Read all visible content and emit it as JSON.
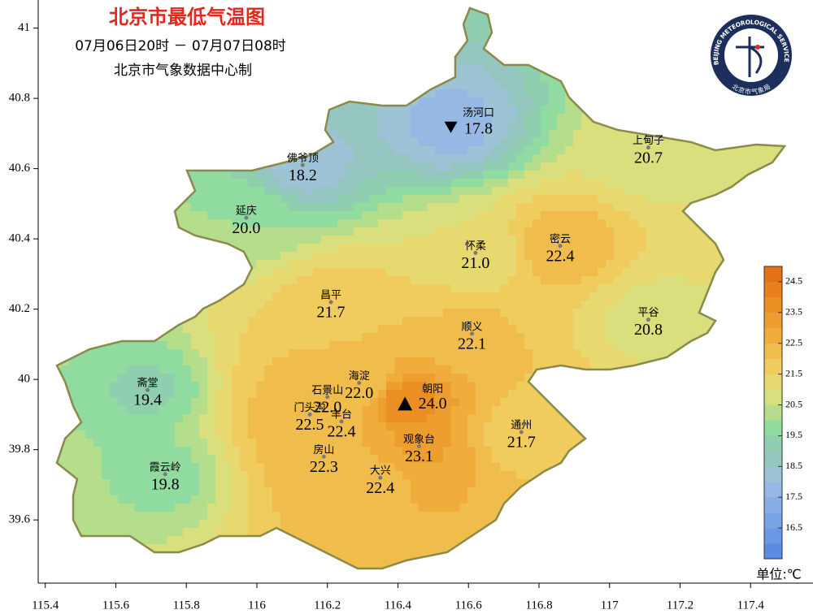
{
  "chart_data": {
    "type": "map",
    "title": "北京市最低气温图",
    "subtitle": "07月06日20时 － 07月07日08时",
    "source": "北京市气象数据中心制",
    "unit": "单位:℃",
    "logo": {
      "text_en": "BEIJING METEOROLOGICAL SERVICE",
      "text_cn": "北京市气象局"
    },
    "xlim": [
      115.38,
      117.57
    ],
    "ylim": [
      39.42,
      41.08
    ],
    "xticks": [
      115.4,
      115.6,
      115.8,
      116,
      116.2,
      116.4,
      116.6,
      116.8,
      117,
      117.2,
      117.4
    ],
    "yticks": [
      39.6,
      39.8,
      40,
      40.2,
      40.4,
      40.6,
      40.8,
      41
    ],
    "stations": {
      "names": [
        "汤河口",
        "上甸子",
        "佛爷顶",
        "延庆",
        "怀柔",
        "密云",
        "昌平",
        "平谷",
        "顺义",
        "斋堂",
        "海淀",
        "朝阳",
        "石景山",
        "门头沟",
        "丰台",
        "通州",
        "观象台",
        "房山",
        "霞云岭",
        "大兴"
      ],
      "values": [
        17.8,
        20.7,
        18.2,
        20,
        21,
        22.4,
        21.7,
        20.8,
        22.1,
        19.4,
        22,
        24,
        22,
        22.5,
        22.4,
        21.7,
        23.1,
        22.3,
        19.8,
        22.4
      ],
      "value_labels": [
        "17.8",
        "20.7",
        "18.2",
        "20.0",
        "21.0",
        "22.4",
        "21.7",
        "20.8",
        "22.1",
        "19.4",
        "22.0",
        "24.0",
        "22.0",
        "22.5",
        "22.4",
        "21.7",
        "23.1",
        "22.3",
        "19.8",
        "22.4"
      ],
      "lon": [
        116.55,
        117.11,
        116.13,
        115.97,
        116.62,
        116.86,
        116.21,
        117.11,
        116.61,
        115.69,
        116.29,
        116.42,
        116.2,
        116.15,
        116.24,
        116.75,
        116.46,
        116.19,
        115.74,
        116.35
      ],
      "lat": [
        40.72,
        40.66,
        40.61,
        40.46,
        40.36,
        40.38,
        40.22,
        40.17,
        40.13,
        39.97,
        39.99,
        39.93,
        39.95,
        39.9,
        39.88,
        39.85,
        39.81,
        39.78,
        39.73,
        39.72
      ]
    },
    "colorbar": {
      "clim": [
        15.5,
        25
      ],
      "ticks": [
        16.5,
        17.5,
        18.5,
        19.5,
        20.5,
        21.5,
        22.5,
        23.5,
        24.5
      ],
      "colors": [
        "#5a8de2",
        "#6a98e4",
        "#7aa3e6",
        "#89aee6",
        "#97b8e4",
        "#9ec3d6",
        "#95c7c0",
        "#8fcfb0",
        "#90dba0",
        "#b5de8c",
        "#d8df7c",
        "#e8d870",
        "#f0cc5e",
        "#f0bd4c",
        "#f0ad3c",
        "#ee9e2e",
        "#eb8f24",
        "#e8801e",
        "#e47018"
      ]
    }
  }
}
